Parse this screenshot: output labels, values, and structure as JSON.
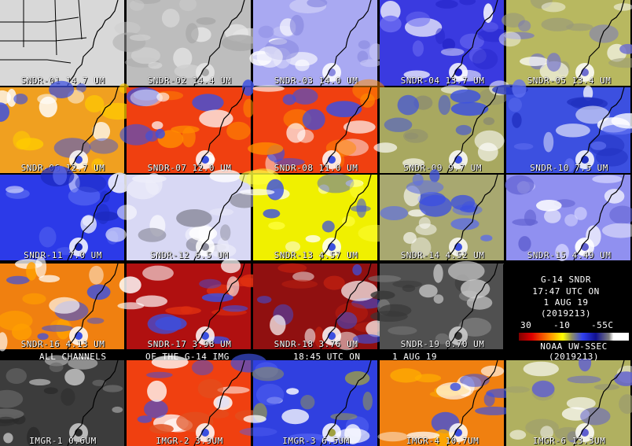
{
  "tiles": [
    {
      "label": "SNDR-01 14.7 UM",
      "colors": [
        "#d8d8d8",
        "#f0f0f0",
        "#ffffff",
        "#c0c0c0"
      ]
    },
    {
      "label": "SNDR-02 14.4 UM",
      "colors": [
        "#bdbdbd",
        "#cfcfcf",
        "#e6e6e6",
        "#a8a8a8"
      ]
    },
    {
      "label": "SNDR-03 14.0 UM",
      "colors": [
        "#a9a9f2",
        "#cfcff8",
        "#ffffff",
        "#8a8ae0"
      ]
    },
    {
      "label": "SNDR-04 13.7 UM",
      "colors": [
        "#3a3ae0",
        "#6b6bf0",
        "#ffffff",
        "#2424c8"
      ]
    },
    {
      "label": "SNDR-05 13.4 UM",
      "colors": [
        "#b8b860",
        "#9a9a7a",
        "#ffffff",
        "#6e6ed0"
      ]
    },
    {
      "label": "SNDR-06 12.7 UM",
      "colors": [
        "#f0a020",
        "#ffcc00",
        "#ffffff",
        "#3c50e0"
      ]
    },
    {
      "label": "SNDR-07 12.0 UM",
      "colors": [
        "#f04010",
        "#ff8c00",
        "#ffffff",
        "#3c50e0"
      ]
    },
    {
      "label": "SNDR-08 11.0 UM",
      "colors": [
        "#f04010",
        "#ff8c00",
        "#ffffff",
        "#3c50e0"
      ]
    },
    {
      "label": "SNDR-09 9.7 UM",
      "colors": [
        "#a8a860",
        "#8c8c70",
        "#ffffff",
        "#3c50e0"
      ]
    },
    {
      "label": "SNDR-10 7.5 UM",
      "colors": [
        "#3c50e0",
        "#6070f0",
        "#ffffff",
        "#2030c0"
      ]
    },
    {
      "label": "SNDR-11 7.0 UM",
      "colors": [
        "#2c3ae8",
        "#5868f0",
        "#ffffff",
        "#1c2ac0"
      ]
    },
    {
      "label": "SNDR-12 6.5 UM",
      "colors": [
        "#d8d8f4",
        "#ececfa",
        "#ffffff",
        "#8c8c9c"
      ]
    },
    {
      "label": "SNDR-13 4.57 UM",
      "colors": [
        "#f0f000",
        "#ffff40",
        "#ffffff",
        "#3c50e0"
      ]
    },
    {
      "label": "SNDR-14 4.52 UM",
      "colors": [
        "#a8a870",
        "#6070e0",
        "#ffffff",
        "#3c50e0"
      ]
    },
    {
      "label": "SNDR-15 4.49 UM",
      "colors": [
        "#9090f0",
        "#d8d8ff",
        "#ffffff",
        "#6060d0"
      ]
    },
    {
      "label": "SNDR-16 4.13 UM",
      "colors": [
        "#f08010",
        "#ffa000",
        "#ffffff",
        "#3c50e0"
      ]
    },
    {
      "label": "SNDR-17 3.98 UM",
      "colors": [
        "#b01010",
        "#e03010",
        "#ffffff",
        "#3c50e0"
      ]
    },
    {
      "label": "SNDR-18 3.76 UM",
      "colors": [
        "#901010",
        "#c02010",
        "#ffffff",
        "#3c50e0"
      ]
    },
    {
      "label": "SNDR-19 0.70 UM",
      "colors": [
        "#505050",
        "#808080",
        "#d0d0d0",
        "#383838"
      ]
    },
    {
      "label": "IMGR-1 0.6UM",
      "colors": [
        "#3c3c3c",
        "#6a6a6a",
        "#d0d0d0",
        "#2a2a2a"
      ]
    },
    {
      "label": "IMGR-2 3.9UM",
      "colors": [
        "#f04010",
        "#e05020",
        "#ffffff",
        "#3c50e0"
      ]
    },
    {
      "label": "IMGR-3 6.5UM",
      "colors": [
        "#3040e0",
        "#5060f0",
        "#ffffff",
        "#a0a040"
      ]
    },
    {
      "label": "IMGR-4 10.7UM",
      "colors": [
        "#f08010",
        "#ffb000",
        "#ffffff",
        "#3c50e0"
      ]
    },
    {
      "label": "IMGR-6 13.3UM",
      "colors": [
        "#b0b060",
        "#9a9a70",
        "#ffffff",
        "#6060d0"
      ]
    }
  ],
  "captions": {
    "line1": "ALL CHANNELS",
    "line2": "OF THE G-14 IMG",
    "line3": "18:45 UTC ON",
    "line4": "1 AUG 19"
  },
  "info": {
    "sat": "G-14 SNDR",
    "time": "17:47 UTC ON",
    "date": "1 AUG 19",
    "julian": "(2019213)",
    "tick1": "30",
    "tick2": "-10",
    "tick3": "-55C",
    "org": "NOAA UW-SSEC",
    "julian2": "(2019213)"
  }
}
